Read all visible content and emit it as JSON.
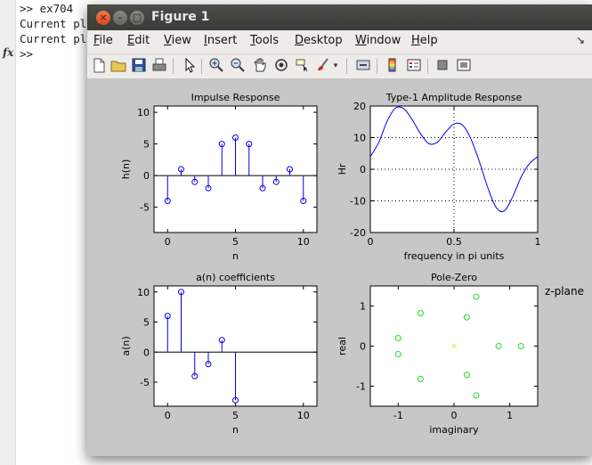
{
  "console": {
    "lines": [
      ">> ex704",
      "Current pl",
      "Current pl",
      ">>"
    ],
    "fx_symbol": "fx"
  },
  "window": {
    "title": "Figure 1",
    "buttons": {
      "close": "×",
      "minimize": "–",
      "maximize": "□"
    },
    "menu": [
      {
        "key": "F",
        "rest": "ile"
      },
      {
        "key": "E",
        "rest": "dit"
      },
      {
        "key": "V",
        "rest": "iew"
      },
      {
        "key": "I",
        "rest": "nsert"
      },
      {
        "key": "T",
        "rest": "ools"
      },
      {
        "key": "D",
        "rest": "esktop"
      },
      {
        "key": "W",
        "rest": "indow"
      },
      {
        "key": "H",
        "rest": "elp"
      }
    ],
    "dock_glyph": "↘",
    "toolbar_icons": [
      "new-figure-icon",
      "open-file-icon",
      "save-icon",
      "print-icon",
      "pointer-icon",
      "zoom-in-icon",
      "zoom-out-icon",
      "pan-icon",
      "rotate-icon",
      "data-cursor-icon",
      "brush-icon",
      "brush-dropdown-icon",
      "link-plot-icon",
      "colorbar-icon",
      "legend-icon",
      "hide-plot-tools-icon",
      "show-plot-tools-icon"
    ]
  },
  "colors": {
    "stem": "#0000ee",
    "pz_marker": "#22dd22",
    "axis_bg": "#ffffff",
    "figure_bg": "#c7c7c7"
  },
  "chart_data": [
    {
      "type": "stem",
      "title": "Impulse Response",
      "xlabel": "n",
      "ylabel": "h(n)",
      "xlim": [
        -1,
        11
      ],
      "ylim": [
        -9,
        11
      ],
      "xticks": [
        0,
        5,
        10
      ],
      "yticks": [
        10,
        5,
        0,
        -5
      ],
      "x": [
        0,
        1,
        2,
        3,
        4,
        5,
        6,
        7,
        8,
        9,
        10
      ],
      "values": [
        -4,
        1,
        -1,
        -2,
        5,
        6,
        5,
        -2,
        -1,
        1,
        -4
      ]
    },
    {
      "type": "line",
      "title": "Type-1 Amplitude Response",
      "xlabel": "frequency in pi units",
      "ylabel": "Hr",
      "xlim": [
        0,
        1
      ],
      "ylim": [
        -20,
        20
      ],
      "xticks": [
        "0",
        "0.5",
        "1"
      ],
      "yticks": [
        "20",
        "10",
        "0",
        "-10",
        "-20"
      ],
      "grid": true,
      "x": [
        0,
        0.05,
        0.1,
        0.15,
        0.2,
        0.25,
        0.3,
        0.35,
        0.4,
        0.45,
        0.5,
        0.55,
        0.6,
        0.65,
        0.7,
        0.75,
        0.8,
        0.85,
        0.9,
        0.95,
        1.0
      ],
      "values": [
        4.0,
        8.44,
        15.13,
        19.36,
        19.13,
        15.68,
        11.24,
        8.1,
        8.53,
        11.72,
        14.32,
        14.01,
        9.7,
        2.64,
        -5.53,
        -11.96,
        -13.2,
        -8.78,
        -2.58,
        1.73,
        4.0
      ]
    },
    {
      "type": "stem",
      "title": "a(n) coefficients",
      "xlabel": "n",
      "ylabel": "a(n)",
      "xlim": [
        -1,
        11
      ],
      "ylim": [
        -9,
        11
      ],
      "xticks": [
        0,
        5,
        10
      ],
      "yticks": [
        10,
        5,
        0,
        -5
      ],
      "x": [
        0,
        1,
        2,
        3,
        4,
        5
      ],
      "values": [
        6,
        10,
        -4,
        -2,
        2,
        -8
      ]
    },
    {
      "type": "scatter",
      "title": "Pole-Zero",
      "annotation": "z-plane",
      "xlabel": "imaginary",
      "ylabel": "real",
      "xlim": [
        -1.5,
        1.5
      ],
      "ylim": [
        -1.5,
        1.5
      ],
      "xticks": [
        -1,
        0,
        1
      ],
      "yticks": [
        1,
        0,
        -1
      ],
      "zeros": [
        [
          0.4,
          1.23
        ],
        [
          -0.6,
          0.82
        ],
        [
          0.23,
          0.72
        ],
        [
          -1.0,
          0.2
        ],
        [
          -1.0,
          -0.2
        ],
        [
          0.8,
          0.0
        ],
        [
          1.2,
          0.0
        ],
        [
          -0.6,
          -0.82
        ],
        [
          0.23,
          -0.72
        ],
        [
          0.4,
          -1.23
        ]
      ],
      "poles": [
        [
          0.0,
          0.0
        ]
      ]
    }
  ]
}
